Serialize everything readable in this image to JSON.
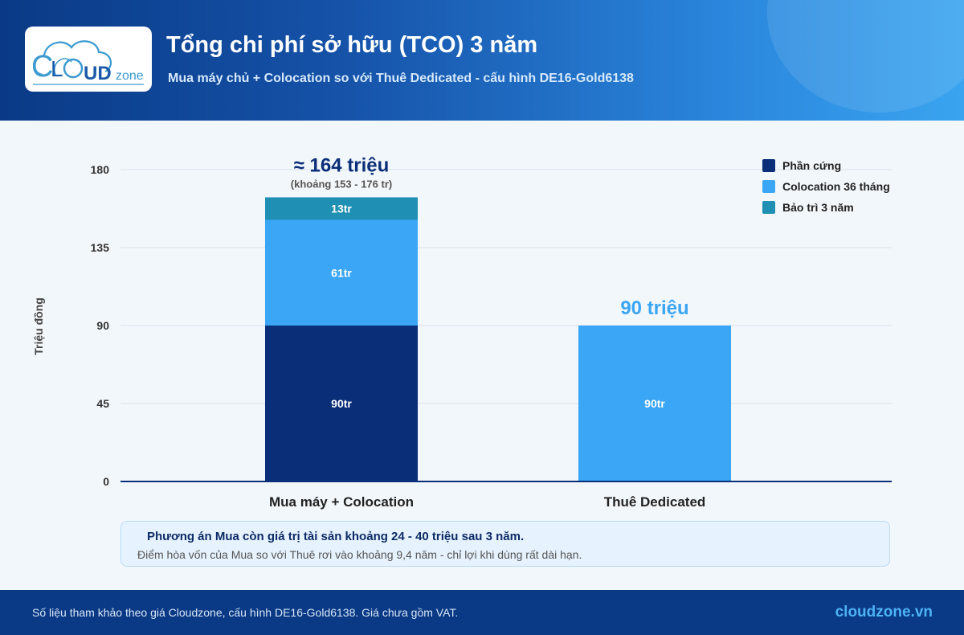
{
  "header": {
    "title": "Tổng chi phí sở hữu (TCO) 3 năm",
    "subtitle": "Mua máy chủ + Colocation so với Thuê Dedicated - cấu hình DE16-Gold6138"
  },
  "logo": {
    "text_c": "C",
    "text_l": "L",
    "text_ud": "UD",
    "text_zone": "zone",
    "brand_color": "#1a5aa8",
    "accent_color": "#3b9bd0"
  },
  "chart_data": {
    "type": "bar",
    "stacked": true,
    "categories": [
      "Mua máy + Colocation",
      "Thuê Dedicated"
    ],
    "series": [
      {
        "name": "Phần cứng",
        "color": "#0b2e78",
        "values": [
          90,
          null
        ]
      },
      {
        "name": "Colocation 36 tháng",
        "color": "#3aa6f5",
        "values": [
          61,
          90
        ]
      },
      {
        "name": "Bảo trì 3 năm",
        "color": "#1f8fb3",
        "values": [
          13,
          null
        ]
      }
    ],
    "segment_labels": [
      [
        "90tr",
        "61tr",
        "13tr"
      ],
      [
        null,
        "90tr",
        null
      ]
    ],
    "totals": [
      {
        "label": "≈ 164 triệu",
        "sublabel": "(khoảng 153 - 176 tr)",
        "color": "#0b2e78"
      },
      {
        "label": "90 triệu",
        "sublabel": "",
        "color": "#3aa6f5"
      }
    ],
    "ylabel": "Triệu đồng",
    "xlabel": "",
    "ylim": [
      0,
      180
    ],
    "yticks": [
      0,
      45,
      90,
      135,
      180
    ],
    "grid": true,
    "legend_position": "top-right"
  },
  "note": {
    "main": "Phương án Mua còn giá trị tài sản khoảng 24 - 40 triệu sau 3 năm.",
    "sub": "Điểm hòa vốn của Mua so với Thuê rơi vào khoảng 9,4 năm - chỉ lợi khi dùng rất dài hạn."
  },
  "footer": {
    "note": "Số liệu tham khảo theo giá Cloudzone, cấu hình DE16-Gold6138. Giá chưa gồm VAT.",
    "url": "cloudzone.vn"
  }
}
